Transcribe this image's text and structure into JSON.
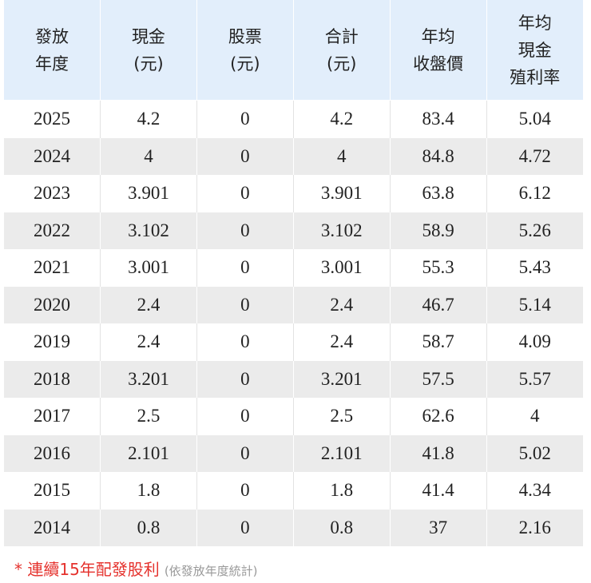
{
  "table": {
    "header": [
      [
        "發放",
        "年度"
      ],
      [
        "現金",
        "(元)"
      ],
      [
        "股票",
        "(元)"
      ],
      [
        "合計",
        "(元)"
      ],
      [
        "年均",
        "收盤價"
      ],
      [
        "年均",
        "現金",
        "殖利率"
      ]
    ],
    "rows": [
      [
        "2025",
        "4.2",
        "0",
        "4.2",
        "83.4",
        "5.04"
      ],
      [
        "2024",
        "4",
        "0",
        "4",
        "84.8",
        "4.72"
      ],
      [
        "2023",
        "3.901",
        "0",
        "3.901",
        "63.8",
        "6.12"
      ],
      [
        "2022",
        "3.102",
        "0",
        "3.102",
        "58.9",
        "5.26"
      ],
      [
        "2021",
        "3.001",
        "0",
        "3.001",
        "55.3",
        "5.43"
      ],
      [
        "2020",
        "2.4",
        "0",
        "2.4",
        "46.7",
        "5.14"
      ],
      [
        "2019",
        "2.4",
        "0",
        "2.4",
        "58.7",
        "4.09"
      ],
      [
        "2018",
        "3.201",
        "0",
        "3.201",
        "57.5",
        "5.57"
      ],
      [
        "2017",
        "2.5",
        "0",
        "2.5",
        "62.6",
        "4"
      ],
      [
        "2016",
        "2.101",
        "0",
        "2.101",
        "41.8",
        "5.02"
      ],
      [
        "2015",
        "1.8",
        "0",
        "1.8",
        "41.4",
        "4.34"
      ],
      [
        "2014",
        "0.8",
        "0",
        "0.8",
        "37",
        "2.16"
      ]
    ]
  },
  "footnote": {
    "main": "* 連續15年配發股利",
    "note": "(依發放年度統計)"
  }
}
